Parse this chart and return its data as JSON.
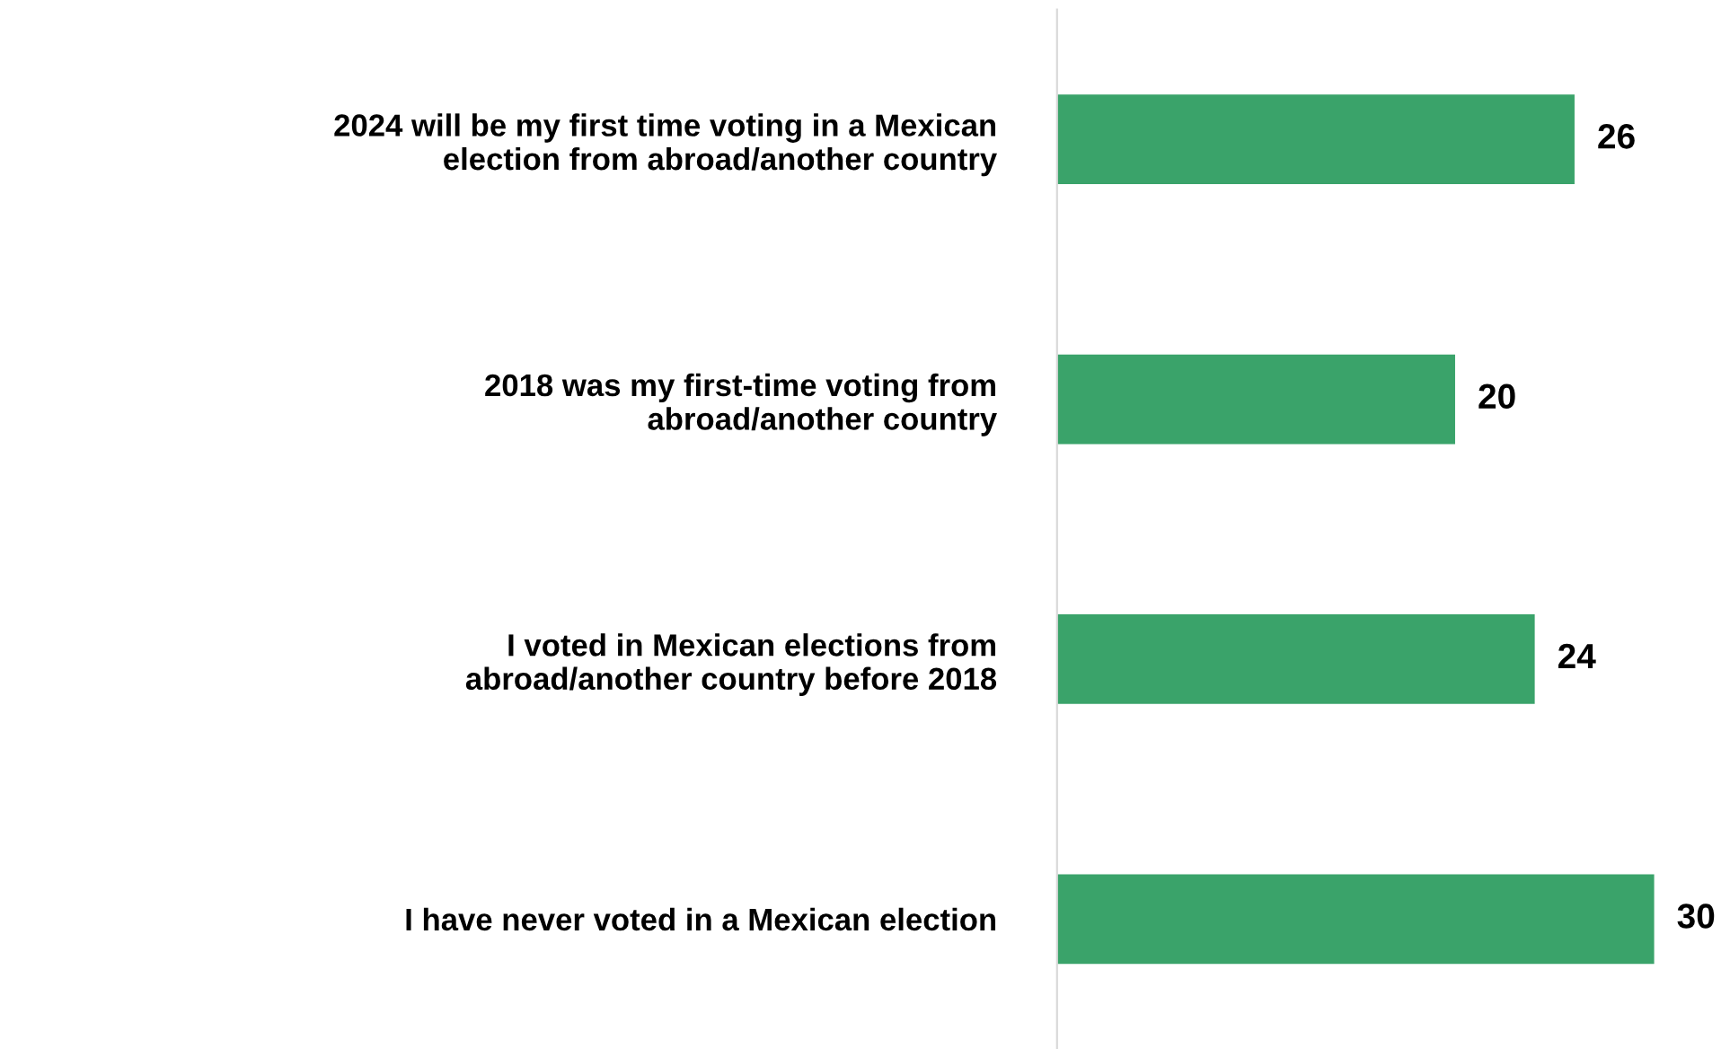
{
  "chart_data": {
    "type": "bar",
    "orientation": "horizontal",
    "categories": [
      "2024 will be my first time voting in a Mexican\nelection from abroad/another country",
      "2018 was my first-time voting from\nabroad/another country",
      "I voted in Mexican elections from\nabroad/another country before 2018",
      "I have never voted in a Mexican election"
    ],
    "values": [
      26,
      20,
      24,
      30
    ],
    "color": "#3aa36a",
    "data_labels": true,
    "grid": false,
    "legend": false
  }
}
